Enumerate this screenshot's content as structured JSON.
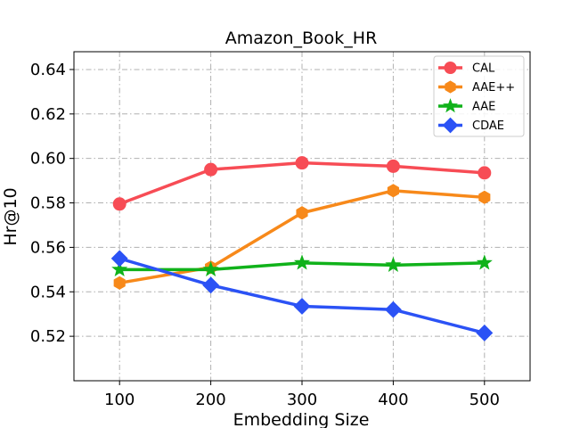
{
  "chart_data": {
    "type": "line",
    "title": "Amazon_Book_HR",
    "xlabel": "Embedding Size",
    "ylabel": "Hr@10",
    "x": [
      100,
      200,
      300,
      400,
      500
    ],
    "xlim": [
      50,
      550
    ],
    "ylim": [
      0.5,
      0.648
    ],
    "xticks": [
      "100",
      "200",
      "300",
      "400",
      "500"
    ],
    "yticks": [
      "0.52",
      "0.54",
      "0.56",
      "0.58",
      "0.60",
      "0.62",
      "0.64"
    ],
    "grid": true,
    "legend_position": "top-right",
    "series": [
      {
        "name": "CAL",
        "color": "#f74c55",
        "marker": "circle",
        "values": [
          0.5795,
          0.595,
          0.598,
          0.5965,
          0.5935
        ]
      },
      {
        "name": "AAE++",
        "color": "#f7891a",
        "marker": "hexagon",
        "values": [
          0.544,
          0.551,
          0.5755,
          0.5855,
          0.5825
        ]
      },
      {
        "name": "AAE",
        "color": "#10b21a",
        "marker": "star",
        "values": [
          0.55,
          0.55,
          0.553,
          0.552,
          0.553
        ]
      },
      {
        "name": "CDAE",
        "color": "#2b52f5",
        "marker": "diamond",
        "values": [
          0.555,
          0.543,
          0.5335,
          0.532,
          0.5215
        ]
      }
    ]
  }
}
